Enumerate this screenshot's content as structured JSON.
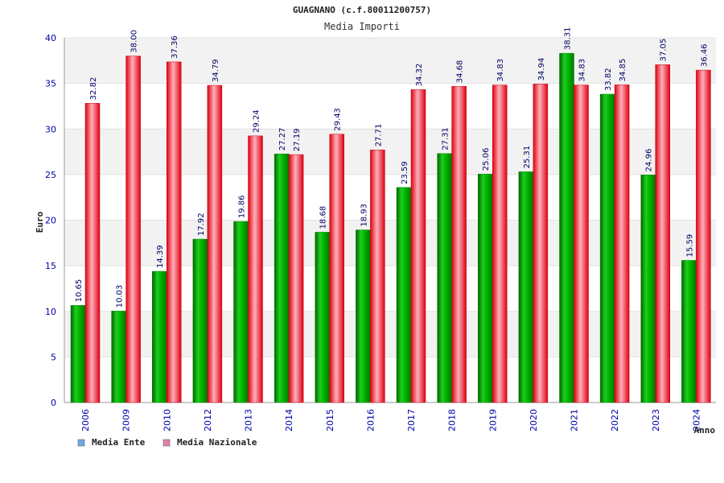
{
  "chart_data": {
    "type": "bar",
    "title": "GUAGNANO (c.f.80011200757)",
    "subtitle": "Media Importi",
    "xlabel": "Anno",
    "ylabel": "Euro",
    "ylim": [
      0,
      40
    ],
    "yticks": [
      0,
      5,
      10,
      15,
      20,
      25,
      30,
      35,
      40
    ],
    "grid": "horizontal alternating bands",
    "legend_position": "bottom-left",
    "categories": [
      "2006",
      "2009",
      "2010",
      "2012",
      "2013",
      "2014",
      "2015",
      "2016",
      "2017",
      "2018",
      "2019",
      "2020",
      "2021",
      "2022",
      "2023",
      "2024"
    ],
    "series": [
      {
        "name": "Media Ente",
        "color": "#00aa00",
        "legend_color": "#6fa8dc",
        "values": [
          10.65,
          10.03,
          14.39,
          17.92,
          19.86,
          27.27,
          18.68,
          18.93,
          23.59,
          27.31,
          25.06,
          25.31,
          38.31,
          33.82,
          24.96,
          15.59
        ],
        "labels": [
          "10.65",
          "10.03",
          "14.39",
          "17.92",
          "19.86",
          "27.27",
          "18.68",
          "18.93",
          "23.59",
          "27.31",
          "25.06",
          "25.31",
          "38.31",
          "33.82",
          "24.96",
          "15.59"
        ]
      },
      {
        "name": "Media Nazionale",
        "color": "#ee1122",
        "legend_color": "#e37fa8",
        "values": [
          32.82,
          38.0,
          37.36,
          34.79,
          29.24,
          27.19,
          29.43,
          27.71,
          34.32,
          34.68,
          34.83,
          34.94,
          34.83,
          34.85,
          37.05,
          36.46
        ],
        "labels": [
          "32.82",
          "38.00",
          "37.36",
          "34.79",
          "29.24",
          "27.19",
          "29.43",
          "27.71",
          "34.32",
          "34.68",
          "34.83",
          "34.94",
          "34.83",
          "34.85",
          "37.05",
          "36.46"
        ]
      }
    ]
  }
}
